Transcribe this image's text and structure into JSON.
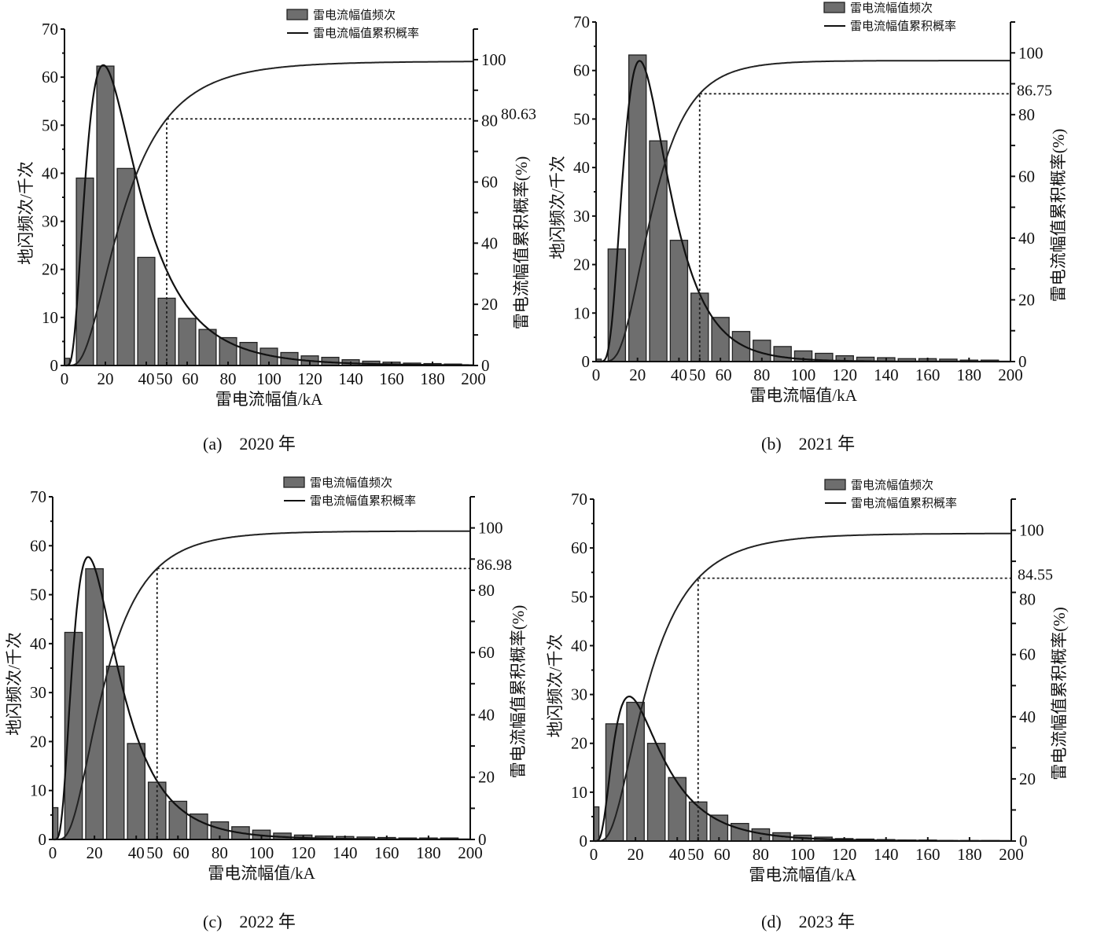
{
  "chart_data": [
    {
      "type": "bar",
      "caption": "(a)　2020 年",
      "xlabel": "雷电流幅值/kA",
      "ylabel": "地闪频次/千次",
      "y2label": "雷电流幅值累积概率(%)",
      "legend": [
        "雷电流幅值频次",
        "雷电流幅值累积概率"
      ],
      "legend_position": "top-right",
      "xlim": [
        0,
        200
      ],
      "ylim": [
        0,
        70
      ],
      "y2lim": [
        0,
        110
      ],
      "xticks": [
        "0",
        "20",
        "40",
        "50",
        "60",
        "80",
        "100",
        "120",
        "140",
        "160",
        "180",
        "200"
      ],
      "yticks": [
        "0",
        "10",
        "20",
        "30",
        "40",
        "50",
        "60",
        "70"
      ],
      "y2ticks": [
        "0",
        "20",
        "40",
        "60",
        "80",
        "100"
      ],
      "bin_centers": [
        0,
        10,
        20,
        30,
        40,
        50,
        60,
        70,
        80,
        90,
        100,
        110,
        120,
        130,
        140,
        150,
        160,
        170,
        180,
        190
      ],
      "values": [
        1.5,
        39,
        62.3,
        41,
        22.5,
        14,
        9.8,
        7.5,
        5.8,
        4.8,
        3.6,
        2.7,
        2,
        1.7,
        1.2,
        0.9,
        0.7,
        0.5,
        0.4,
        0.3
      ],
      "fit_peak": 62.5,
      "fit_mode": 19,
      "cdf_marker_x": 50,
      "cdf_marker_value": 80.63,
      "cdf_marker_label": "80.63",
      "cdf_plateau": 99.5
    },
    {
      "type": "bar",
      "caption": "(b)　2021 年",
      "xlabel": "雷电流幅值/kA",
      "ylabel": "地闪频次/千次",
      "y2label": "雷电流幅值累积概率(%)",
      "legend": [
        "雷电流幅值频次",
        "雷电流幅值累积概率"
      ],
      "legend_position": "top-right",
      "xlim": [
        0,
        200
      ],
      "ylim": [
        0,
        70
      ],
      "y2lim": [
        0,
        110
      ],
      "xticks": [
        "0",
        "20",
        "40",
        "50",
        "60",
        "80",
        "100",
        "120",
        "140",
        "160",
        "180",
        "200"
      ],
      "yticks": [
        "0",
        "10",
        "20",
        "30",
        "40",
        "50",
        "60",
        "70"
      ],
      "y2ticks": [
        "0",
        "20",
        "40",
        "60",
        "80",
        "100"
      ],
      "bin_centers": [
        0,
        10,
        20,
        30,
        40,
        50,
        60,
        70,
        80,
        90,
        100,
        110,
        120,
        130,
        140,
        150,
        160,
        170,
        180,
        190
      ],
      "values": [
        0.5,
        23.2,
        63.2,
        45.5,
        25,
        14.1,
        9.1,
        6.2,
        4.4,
        3.1,
        2.2,
        1.7,
        1.2,
        0.9,
        0.8,
        0.6,
        0.6,
        0.5,
        0.3,
        0.3
      ],
      "fit_peak": 62,
      "fit_mode": 21,
      "cdf_marker_x": 50,
      "cdf_marker_value": 86.75,
      "cdf_marker_label": "86.75",
      "cdf_plateau": 97.5
    },
    {
      "type": "bar",
      "caption": "(c)　2022 年",
      "xlabel": "雷电流幅值/kA",
      "ylabel": "地闪频次/千次",
      "y2label": "雷电流幅值累积概率(%)",
      "legend": [
        "雷电流幅值频次",
        "雷电流幅值累积概率"
      ],
      "legend_position": "top-right",
      "xlim": [
        0,
        200
      ],
      "ylim": [
        0,
        70
      ],
      "y2lim": [
        0,
        110
      ],
      "xticks": [
        "0",
        "20",
        "40",
        "50",
        "60",
        "80",
        "100",
        "120",
        "140",
        "160",
        "180",
        "200"
      ],
      "yticks": [
        "0",
        "10",
        "20",
        "30",
        "40",
        "50",
        "60",
        "70"
      ],
      "y2ticks": [
        "0",
        "20",
        "40",
        "60",
        "80",
        "100"
      ],
      "bin_centers": [
        0,
        10,
        20,
        30,
        40,
        50,
        60,
        70,
        80,
        90,
        100,
        110,
        120,
        130,
        140,
        150,
        160,
        170,
        180,
        190
      ],
      "values": [
        6.5,
        42.3,
        55.3,
        35.4,
        19.6,
        11.7,
        7.8,
        5.2,
        3.6,
        2.6,
        1.9,
        1.3,
        0.9,
        0.7,
        0.6,
        0.5,
        0.4,
        0.3,
        0.3,
        0.3
      ],
      "fit_peak": 57.7,
      "fit_mode": 17,
      "cdf_marker_x": 50,
      "cdf_marker_value": 86.98,
      "cdf_marker_label": "86.98",
      "cdf_plateau": 99
    },
    {
      "type": "bar",
      "caption": "(d)　2023 年",
      "xlabel": "雷电流幅值/kA",
      "ylabel": "地闪频次/千次",
      "y2label": "雷电流幅值累积概率(%)",
      "legend": [
        "雷电流幅值频次",
        "雷电流幅值累积概率"
      ],
      "legend_position": "top-right",
      "xlim": [
        0,
        200
      ],
      "ylim": [
        0,
        70
      ],
      "y2lim": [
        0,
        110
      ],
      "xticks": [
        "0",
        "20",
        "40",
        "50",
        "60",
        "80",
        "100",
        "120",
        "140",
        "160",
        "180",
        "200"
      ],
      "yticks": [
        "0",
        "10",
        "20",
        "30",
        "40",
        "50",
        "60",
        "70"
      ],
      "y2ticks": [
        "0",
        "20",
        "40",
        "60",
        "80",
        "100"
      ],
      "bin_centers": [
        0,
        10,
        20,
        30,
        40,
        50,
        60,
        70,
        80,
        90,
        100,
        110,
        120,
        130,
        140,
        150,
        160,
        170,
        180,
        190
      ],
      "values": [
        7,
        24,
        28.4,
        20,
        13,
        8,
        5.3,
        3.6,
        2.5,
        1.7,
        1.2,
        0.8,
        0.5,
        0.4,
        0.3,
        0.2,
        0.2,
        0.1,
        0.1,
        0.1
      ],
      "fit_peak": 29.6,
      "fit_mode": 17,
      "cdf_marker_x": 50,
      "cdf_marker_value": 84.55,
      "cdf_marker_label": "84.55",
      "cdf_plateau": 99
    }
  ]
}
